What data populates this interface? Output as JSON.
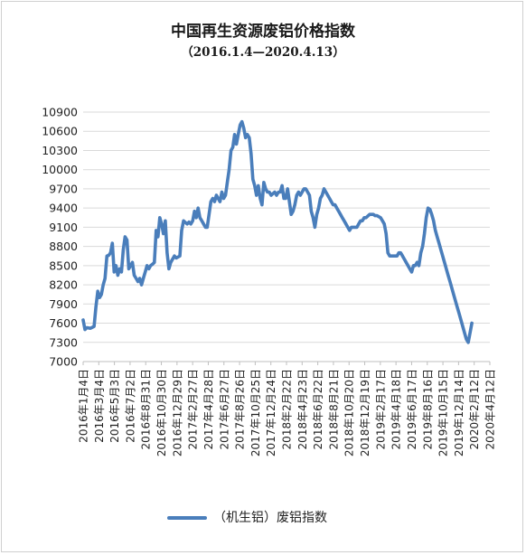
{
  "chart_data": {
    "type": "line",
    "title": "中国再生资源废铝价格指数",
    "subtitle": "（2016.1.4—2020.4.13）",
    "xlabel": "",
    "ylabel": "",
    "ylim": [
      7000,
      10900
    ],
    "yticks": [
      10900,
      10600,
      10300,
      10000,
      9700,
      9400,
      9100,
      8800,
      8500,
      8200,
      7900,
      7600,
      7300,
      7000
    ],
    "xticks": [
      "2016年1月4日",
      "2016年3月4日",
      "2016年5月3日",
      "2016年7月2日",
      "2016年8月31日",
      "2016年10月30日",
      "2016年12月29日",
      "2017年2月27日",
      "2017年4月28日",
      "2017年6月27日",
      "2017年8月26日",
      "2017年10月25日",
      "2017年12月24日",
      "2018年2月22日",
      "2018年4月23日",
      "2018年6月22日",
      "2018年8月21日",
      "2018年10月20日",
      "2018年12月19日",
      "2019年2月17日",
      "2019年4月18日",
      "2019年6月17日",
      "2019年8月16日",
      "2019年10月15日",
      "2019年12月14日",
      "2020年2月12日",
      "2020年4月12日"
    ],
    "grid": true,
    "legend": "bottom",
    "series": [
      {
        "name": "（机生铝）废铝指数",
        "color": "#4a7ebb",
        "points": [
          [
            "2016-01-04",
            7650
          ],
          [
            "2016-01-11",
            7500
          ],
          [
            "2016-01-18",
            7530
          ],
          [
            "2016-02-01",
            7520
          ],
          [
            "2016-02-15",
            7550
          ],
          [
            "2016-02-22",
            7850
          ],
          [
            "2016-02-29",
            8100
          ],
          [
            "2016-03-07",
            8000
          ],
          [
            "2016-03-14",
            8050
          ],
          [
            "2016-03-21",
            8200
          ],
          [
            "2016-03-28",
            8300
          ],
          [
            "2016-04-04",
            8650
          ],
          [
            "2016-04-11",
            8660
          ],
          [
            "2016-04-18",
            8700
          ],
          [
            "2016-04-25",
            8850
          ],
          [
            "2016-05-02",
            8400
          ],
          [
            "2016-05-09",
            8500
          ],
          [
            "2016-05-16",
            8350
          ],
          [
            "2016-05-23",
            8450
          ],
          [
            "2016-05-30",
            8400
          ],
          [
            "2016-06-06",
            8750
          ],
          [
            "2016-06-13",
            8950
          ],
          [
            "2016-06-20",
            8900
          ],
          [
            "2016-06-27",
            8450
          ],
          [
            "2016-07-04",
            8500
          ],
          [
            "2016-07-11",
            8550
          ],
          [
            "2016-07-18",
            8350
          ],
          [
            "2016-07-25",
            8300
          ],
          [
            "2016-08-01",
            8250
          ],
          [
            "2016-08-08",
            8300
          ],
          [
            "2016-08-15",
            8200
          ],
          [
            "2016-08-22",
            8300
          ],
          [
            "2016-08-29",
            8400
          ],
          [
            "2016-09-05",
            8500
          ],
          [
            "2016-09-12",
            8450
          ],
          [
            "2016-09-19",
            8500
          ],
          [
            "2016-09-26",
            8520
          ],
          [
            "2016-10-03",
            8550
          ],
          [
            "2016-10-10",
            9050
          ],
          [
            "2016-10-17",
            8950
          ],
          [
            "2016-10-24",
            9250
          ],
          [
            "2016-10-31",
            9150
          ],
          [
            "2016-11-07",
            9000
          ],
          [
            "2016-11-14",
            9200
          ],
          [
            "2016-11-21",
            8700
          ],
          [
            "2016-11-28",
            8450
          ],
          [
            "2016-12-05",
            8550
          ],
          [
            "2016-12-12",
            8600
          ],
          [
            "2016-12-19",
            8650
          ],
          [
            "2016-12-26",
            8620
          ],
          [
            "2017-01-09",
            8650
          ],
          [
            "2017-01-16",
            9050
          ],
          [
            "2017-01-23",
            9200
          ],
          [
            "2017-02-06",
            9150
          ],
          [
            "2017-02-13",
            9180
          ],
          [
            "2017-02-20",
            9150
          ],
          [
            "2017-02-27",
            9200
          ],
          [
            "2017-03-06",
            9350
          ],
          [
            "2017-03-13",
            9250
          ],
          [
            "2017-03-20",
            9400
          ],
          [
            "2017-03-27",
            9250
          ],
          [
            "2017-04-03",
            9200
          ],
          [
            "2017-04-10",
            9150
          ],
          [
            "2017-04-17",
            9100
          ],
          [
            "2017-04-24",
            9100
          ],
          [
            "2017-05-01",
            9300
          ],
          [
            "2017-05-08",
            9500
          ],
          [
            "2017-05-15",
            9550
          ],
          [
            "2017-05-22",
            9500
          ],
          [
            "2017-05-29",
            9600
          ],
          [
            "2017-06-05",
            9550
          ],
          [
            "2017-06-12",
            9500
          ],
          [
            "2017-06-19",
            9650
          ],
          [
            "2017-06-26",
            9550
          ],
          [
            "2017-07-03",
            9600
          ],
          [
            "2017-07-10",
            9800
          ],
          [
            "2017-07-17",
            10000
          ],
          [
            "2017-07-24",
            10300
          ],
          [
            "2017-07-31",
            10350
          ],
          [
            "2017-08-07",
            10550
          ],
          [
            "2017-08-14",
            10400
          ],
          [
            "2017-08-21",
            10550
          ],
          [
            "2017-08-28",
            10700
          ],
          [
            "2017-09-04",
            10750
          ],
          [
            "2017-09-11",
            10650
          ],
          [
            "2017-09-18",
            10500
          ],
          [
            "2017-09-25",
            10550
          ],
          [
            "2017-10-02",
            10500
          ],
          [
            "2017-10-09",
            10250
          ],
          [
            "2017-10-16",
            9850
          ],
          [
            "2017-10-23",
            9750
          ],
          [
            "2017-10-30",
            9600
          ],
          [
            "2017-11-06",
            9750
          ],
          [
            "2017-11-13",
            9550
          ],
          [
            "2017-11-20",
            9450
          ],
          [
            "2017-11-27",
            9800
          ],
          [
            "2017-12-04",
            9700
          ],
          [
            "2017-12-11",
            9650
          ],
          [
            "2017-12-18",
            9650
          ],
          [
            "2017-12-25",
            9600
          ],
          [
            "2018-01-08",
            9650
          ],
          [
            "2018-01-15",
            9600
          ],
          [
            "2018-01-22",
            9650
          ],
          [
            "2018-01-29",
            9650
          ],
          [
            "2018-02-05",
            9750
          ],
          [
            "2018-02-12",
            9550
          ],
          [
            "2018-02-19",
            9550
          ],
          [
            "2018-02-26",
            9700
          ],
          [
            "2018-03-05",
            9500
          ],
          [
            "2018-03-12",
            9300
          ],
          [
            "2018-03-19",
            9350
          ],
          [
            "2018-03-26",
            9450
          ],
          [
            "2018-04-02",
            9600
          ],
          [
            "2018-04-09",
            9650
          ],
          [
            "2018-04-16",
            9600
          ],
          [
            "2018-04-23",
            9650
          ],
          [
            "2018-04-30",
            9700
          ],
          [
            "2018-05-07",
            9700
          ],
          [
            "2018-05-14",
            9650
          ],
          [
            "2018-05-21",
            9600
          ],
          [
            "2018-05-28",
            9350
          ],
          [
            "2018-06-04",
            9250
          ],
          [
            "2018-06-11",
            9100
          ],
          [
            "2018-06-18",
            9300
          ],
          [
            "2018-06-25",
            9400
          ],
          [
            "2018-07-02",
            9550
          ],
          [
            "2018-07-09",
            9600
          ],
          [
            "2018-07-16",
            9700
          ],
          [
            "2018-07-23",
            9650
          ],
          [
            "2018-07-30",
            9600
          ],
          [
            "2018-08-06",
            9550
          ],
          [
            "2018-08-13",
            9500
          ],
          [
            "2018-08-20",
            9450
          ],
          [
            "2018-08-27",
            9450
          ],
          [
            "2018-09-03",
            9400
          ],
          [
            "2018-09-10",
            9350
          ],
          [
            "2018-09-17",
            9300
          ],
          [
            "2018-09-24",
            9250
          ],
          [
            "2018-10-01",
            9200
          ],
          [
            "2018-10-08",
            9150
          ],
          [
            "2018-10-15",
            9100
          ],
          [
            "2018-10-22",
            9050
          ],
          [
            "2018-10-29",
            9100
          ],
          [
            "2018-11-05",
            9100
          ],
          [
            "2018-11-12",
            9100
          ],
          [
            "2018-11-19",
            9100
          ],
          [
            "2018-11-26",
            9150
          ],
          [
            "2018-12-03",
            9200
          ],
          [
            "2018-12-10",
            9200
          ],
          [
            "2018-12-17",
            9250
          ],
          [
            "2018-12-24",
            9250
          ],
          [
            "2019-01-07",
            9300
          ],
          [
            "2019-01-14",
            9300
          ],
          [
            "2019-01-21",
            9300
          ],
          [
            "2019-01-28",
            9280
          ],
          [
            "2019-02-04",
            9280
          ],
          [
            "2019-02-18",
            9250
          ],
          [
            "2019-02-25",
            9200
          ],
          [
            "2019-03-04",
            9150
          ],
          [
            "2019-03-11",
            9000
          ],
          [
            "2019-03-18",
            8700
          ],
          [
            "2019-03-25",
            8650
          ],
          [
            "2019-04-01",
            8650
          ],
          [
            "2019-04-08",
            8650
          ],
          [
            "2019-04-15",
            8650
          ],
          [
            "2019-04-22",
            8650
          ],
          [
            "2019-04-29",
            8700
          ],
          [
            "2019-05-06",
            8700
          ],
          [
            "2019-05-13",
            8650
          ],
          [
            "2019-05-20",
            8600
          ],
          [
            "2019-05-27",
            8550
          ],
          [
            "2019-06-03",
            8500
          ],
          [
            "2019-06-10",
            8450
          ],
          [
            "2019-06-17",
            8400
          ],
          [
            "2019-06-24",
            8500
          ],
          [
            "2019-07-01",
            8500
          ],
          [
            "2019-07-08",
            8550
          ],
          [
            "2019-07-15",
            8500
          ],
          [
            "2019-07-22",
            8700
          ],
          [
            "2019-07-29",
            8800
          ],
          [
            "2019-08-05",
            9000
          ],
          [
            "2019-08-12",
            9250
          ],
          [
            "2019-08-19",
            9400
          ],
          [
            "2019-08-26",
            9380
          ],
          [
            "2019-09-02",
            9300
          ],
          [
            "2019-09-09",
            9200
          ],
          [
            "2019-09-16",
            9050
          ],
          [
            "2019-09-23",
            8950
          ],
          [
            "2019-09-30",
            8850
          ],
          [
            "2019-10-07",
            8750
          ],
          [
            "2019-10-14",
            8650
          ],
          [
            "2019-10-21",
            8550
          ],
          [
            "2019-10-28",
            8450
          ],
          [
            "2019-11-04",
            8350
          ],
          [
            "2019-11-11",
            8250
          ],
          [
            "2019-11-18",
            8150
          ],
          [
            "2019-11-25",
            8050
          ],
          [
            "2019-12-02",
            7950
          ],
          [
            "2019-12-09",
            7850
          ],
          [
            "2019-12-16",
            7750
          ],
          [
            "2019-12-23",
            7650
          ],
          [
            "2019-12-30",
            7550
          ],
          [
            "2020-01-06",
            7450
          ],
          [
            "2020-01-13",
            7350
          ],
          [
            "2020-01-20",
            7300
          ],
          [
            "2020-02-03",
            7600
          ]
        ]
      }
    ]
  }
}
